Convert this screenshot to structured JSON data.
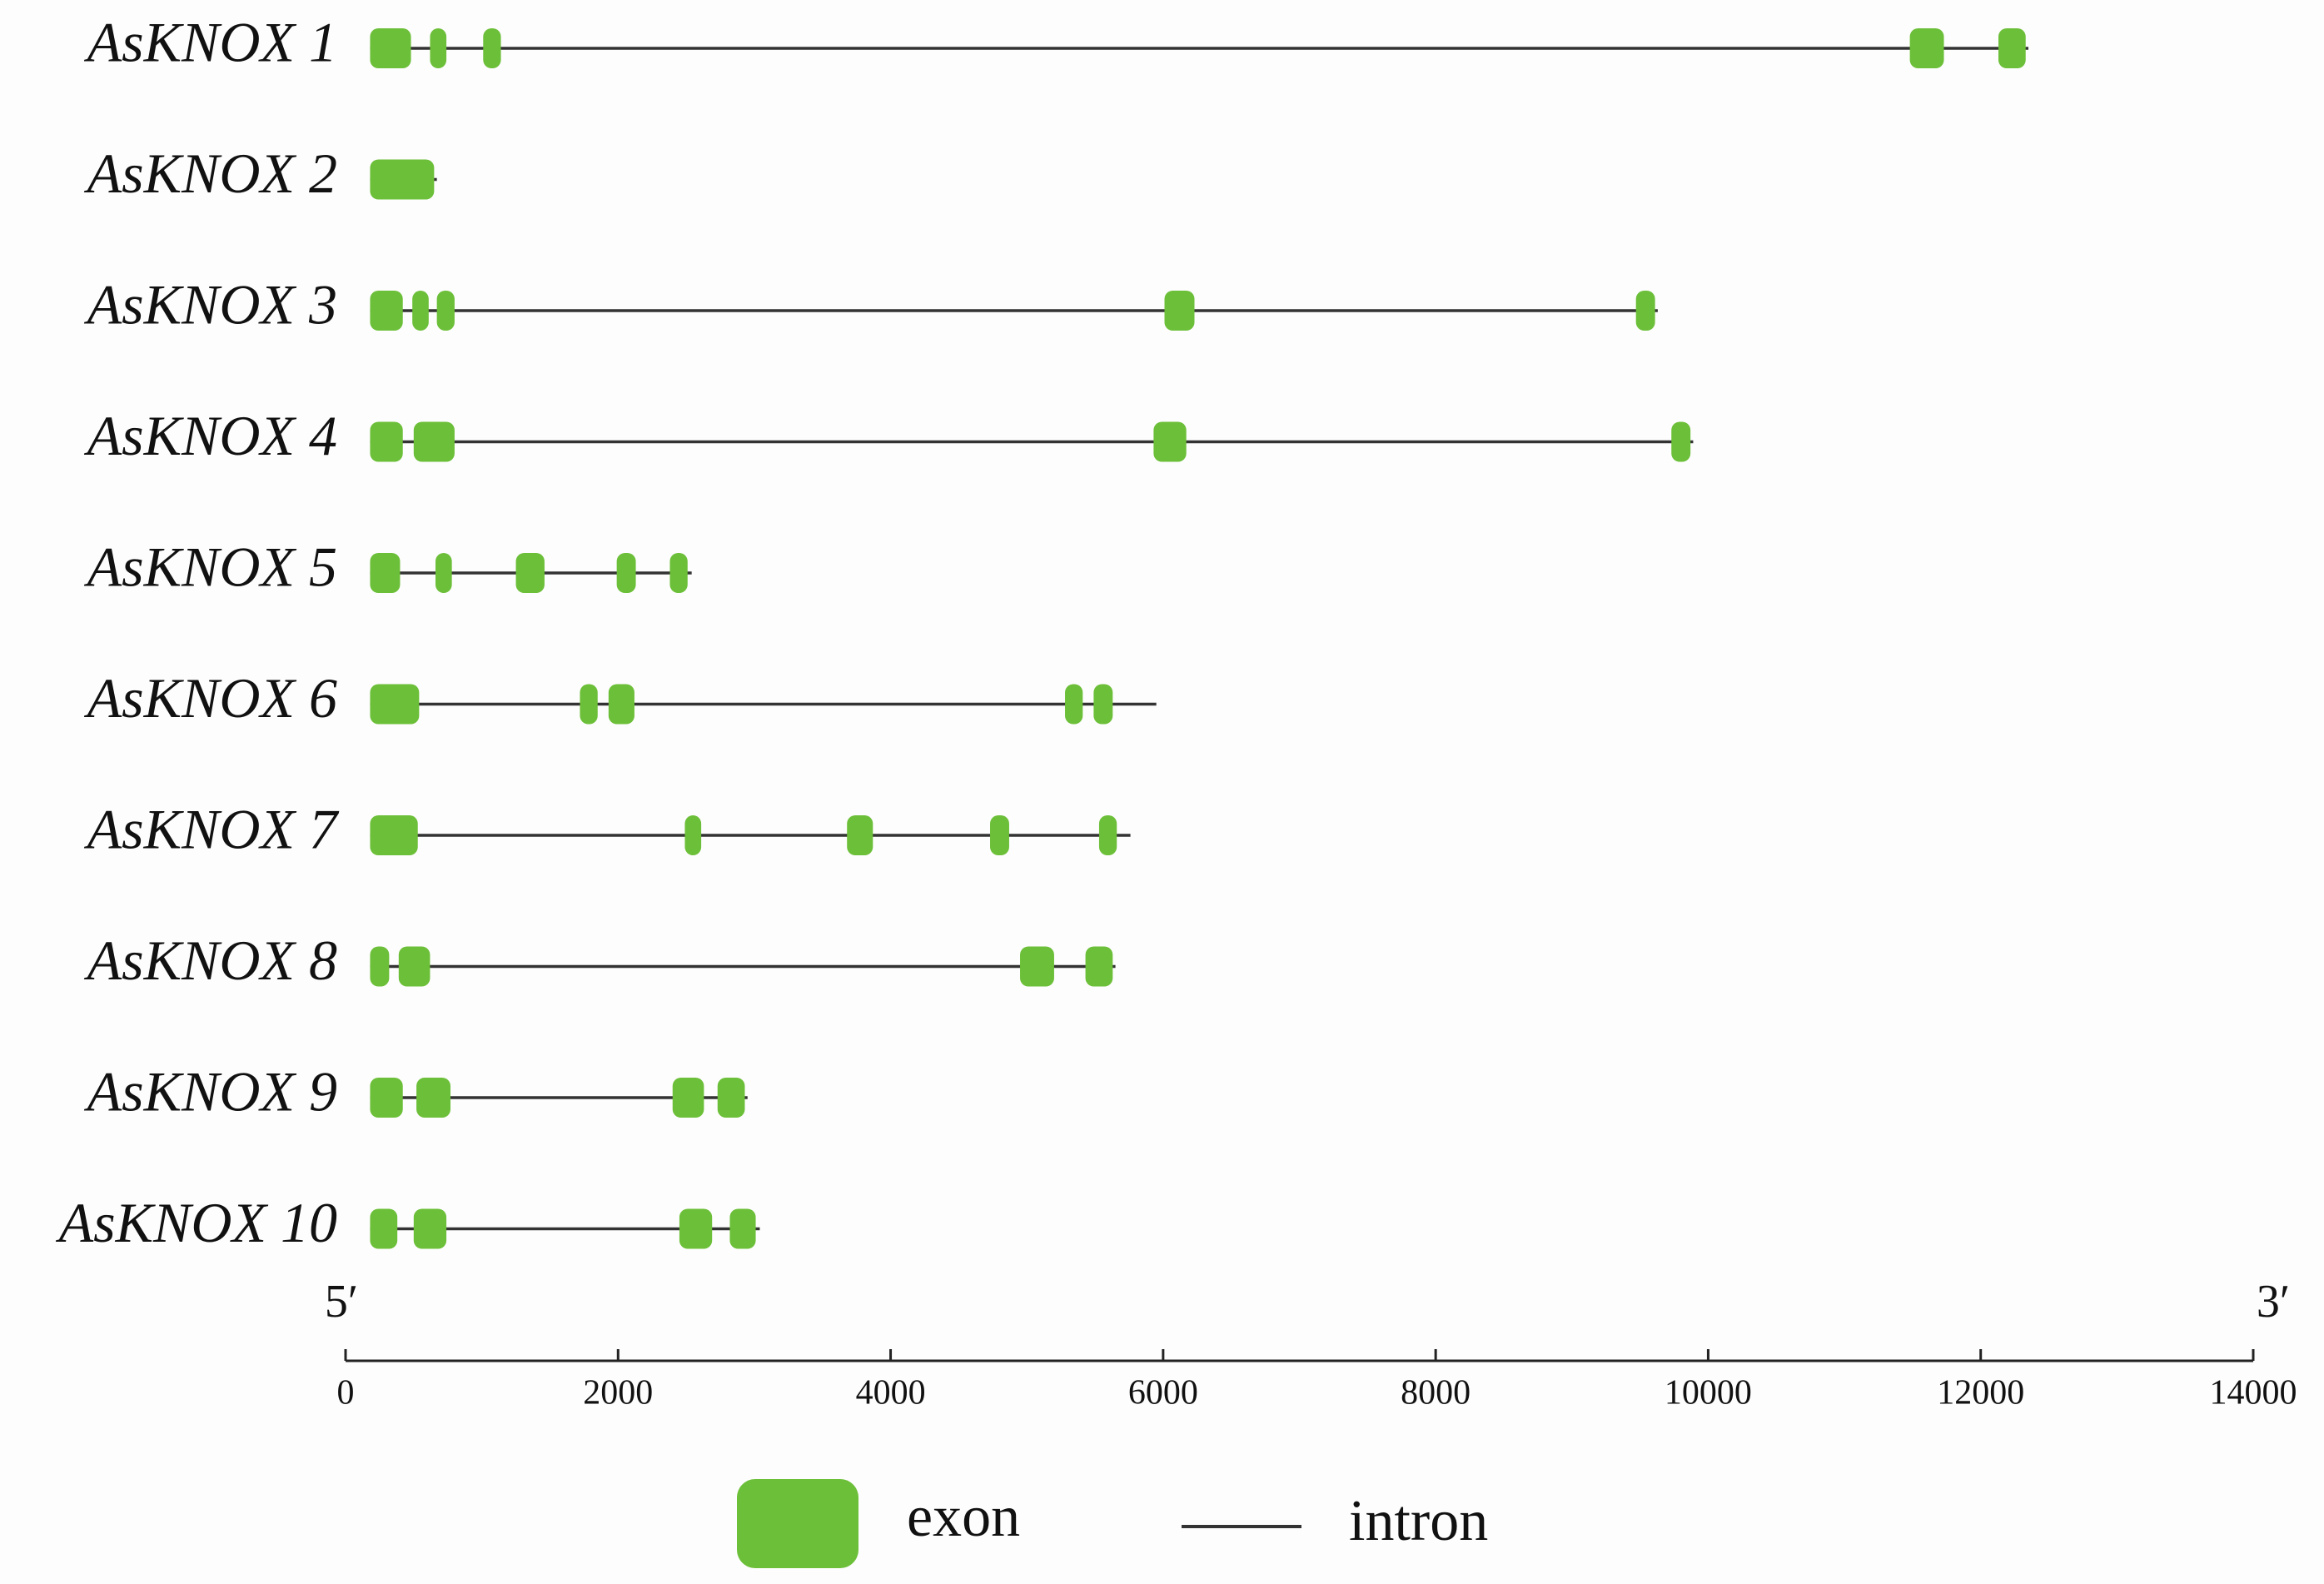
{
  "chart_data": {
    "type": "gene-structure",
    "genes": [
      {
        "name": "AsKNOX 1",
        "span": [
          180,
          12350
        ],
        "exons": [
          [
            180,
            480
          ],
          [
            620,
            740
          ],
          [
            1010,
            1140
          ],
          [
            11480,
            11730
          ],
          [
            12130,
            12330
          ]
        ]
      },
      {
        "name": "AsKNOX 2",
        "span": [
          180,
          670
        ],
        "exons": [
          [
            180,
            650
          ]
        ]
      },
      {
        "name": "AsKNOX 3",
        "span": [
          180,
          9630
        ],
        "exons": [
          [
            180,
            420
          ],
          [
            490,
            610
          ],
          [
            670,
            800
          ],
          [
            6010,
            6230
          ],
          [
            9470,
            9610
          ]
        ]
      },
      {
        "name": "AsKNOX 4",
        "span": [
          180,
          9890
        ],
        "exons": [
          [
            180,
            420
          ],
          [
            500,
            800
          ],
          [
            5930,
            6170
          ],
          [
            9730,
            9870
          ]
        ]
      },
      {
        "name": "AsKNOX 5",
        "span": [
          180,
          2540
        ],
        "exons": [
          [
            180,
            400
          ],
          [
            660,
            780
          ],
          [
            1250,
            1460
          ],
          [
            1990,
            2130
          ],
          [
            2380,
            2510
          ]
        ]
      },
      {
        "name": "AsKNOX 6",
        "span": [
          180,
          5950
        ],
        "exons": [
          [
            180,
            540
          ],
          [
            1720,
            1850
          ],
          [
            1930,
            2120
          ],
          [
            5280,
            5410
          ],
          [
            5490,
            5630
          ]
        ]
      },
      {
        "name": "AsKNOX 7",
        "span": [
          180,
          5760
        ],
        "exons": [
          [
            180,
            530
          ],
          [
            2490,
            2610
          ],
          [
            3680,
            3870
          ],
          [
            4730,
            4870
          ],
          [
            5530,
            5660
          ]
        ]
      },
      {
        "name": "AsKNOX 8",
        "span": [
          180,
          5650
        ],
        "exons": [
          [
            180,
            320
          ],
          [
            390,
            620
          ],
          [
            4950,
            5200
          ],
          [
            5430,
            5630
          ]
        ]
      },
      {
        "name": "AsKNOX 9",
        "span": [
          180,
          2950
        ],
        "exons": [
          [
            180,
            420
          ],
          [
            520,
            770
          ],
          [
            2400,
            2630
          ],
          [
            2730,
            2930
          ]
        ]
      },
      {
        "name": "AsKNOX 10",
        "span": [
          180,
          3040
        ],
        "exons": [
          [
            180,
            380
          ],
          [
            500,
            740
          ],
          [
            2450,
            2690
          ],
          [
            2820,
            3010
          ]
        ]
      }
    ],
    "xlim": [
      0,
      14000
    ],
    "xticks": [
      0,
      2000,
      4000,
      6000,
      8000,
      10000,
      12000,
      14000
    ],
    "five_prime": "5′",
    "three_prime": "3′",
    "legend": {
      "exon": "exon",
      "intron": "intron"
    },
    "exon_color": "#6cbf38",
    "intron_color": "#333333"
  }
}
